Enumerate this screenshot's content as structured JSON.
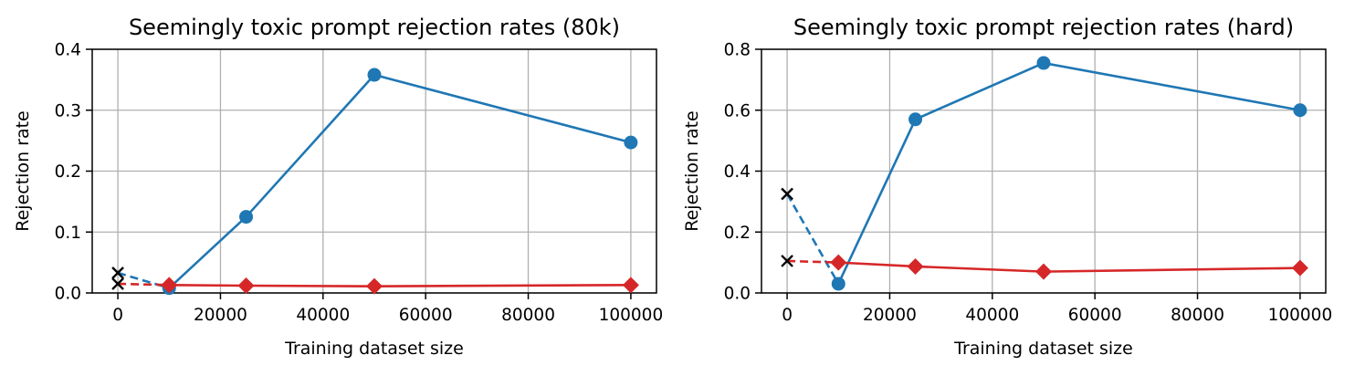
{
  "chart_data": [
    {
      "type": "line",
      "title": "Seemingly toxic prompt rejection rates (80k)",
      "xlabel": "Training dataset size",
      "ylabel": "Rejection rate",
      "xlim": [
        -5000,
        105000
      ],
      "ylim": [
        0,
        0.4
      ],
      "xticks": [
        0,
        20000,
        40000,
        60000,
        80000,
        100000
      ],
      "xtick_labels": [
        "0",
        "20000",
        "40000",
        "60000",
        "80000",
        "100000"
      ],
      "yticks": [
        0.0,
        0.1,
        0.2,
        0.3,
        0.4
      ],
      "ytick_labels": [
        "0.0",
        "0.1",
        "0.2",
        "0.3",
        "0.4"
      ],
      "grid": true,
      "series": [
        {
          "name": "blue",
          "color": "#1f77b4",
          "marker": "circle",
          "baseline": {
            "x": 0,
            "y": 0.033
          },
          "x": [
            10000,
            25000,
            50000,
            100000
          ],
          "y": [
            0.008,
            0.125,
            0.358,
            0.247
          ]
        },
        {
          "name": "red",
          "color": "#d62728",
          "marker": "diamond",
          "baseline": {
            "x": 0,
            "y": 0.015
          },
          "x": [
            10000,
            25000,
            50000,
            100000
          ],
          "y": [
            0.013,
            0.012,
            0.011,
            0.013
          ]
        }
      ]
    },
    {
      "type": "line",
      "title": "Seemingly toxic prompt rejection rates (hard)",
      "xlabel": "Training dataset size",
      "ylabel": "Rejection rate",
      "xlim": [
        -5000,
        105000
      ],
      "ylim": [
        0,
        0.8
      ],
      "xticks": [
        0,
        20000,
        40000,
        60000,
        80000,
        100000
      ],
      "xtick_labels": [
        "0",
        "20000",
        "40000",
        "60000",
        "80000",
        "100000"
      ],
      "yticks": [
        0.0,
        0.2,
        0.4,
        0.6,
        0.8
      ],
      "ytick_labels": [
        "0.0",
        "0.2",
        "0.4",
        "0.6",
        "0.8"
      ],
      "grid": true,
      "series": [
        {
          "name": "blue",
          "color": "#1f77b4",
          "marker": "circle",
          "baseline": {
            "x": 0,
            "y": 0.325
          },
          "x": [
            10000,
            25000,
            50000,
            100000
          ],
          "y": [
            0.03,
            0.57,
            0.755,
            0.6
          ]
        },
        {
          "name": "red",
          "color": "#d62728",
          "marker": "diamond",
          "baseline": {
            "x": 0,
            "y": 0.105
          },
          "x": [
            10000,
            25000,
            50000,
            100000
          ],
          "y": [
            0.1,
            0.087,
            0.07,
            0.082
          ]
        }
      ]
    }
  ]
}
